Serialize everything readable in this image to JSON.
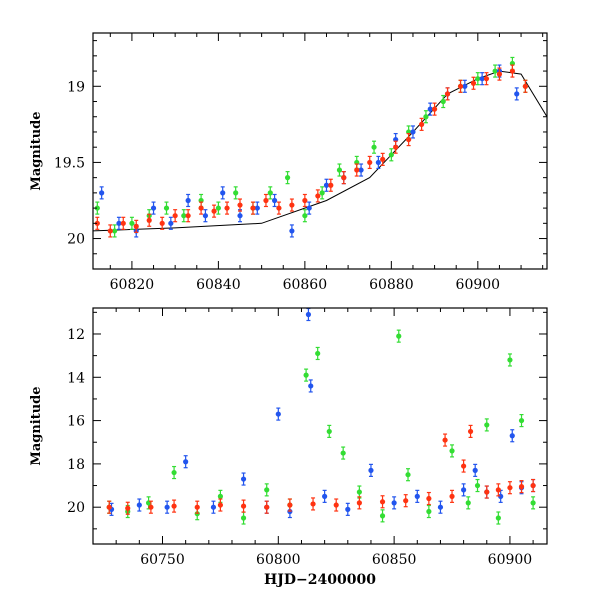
{
  "colors": {
    "green": "#33dd33",
    "blue": "#2255ee",
    "red": "#ff3311",
    "axis": "#000000"
  },
  "chart_data": [
    {
      "type": "scatter",
      "title": "",
      "xlabel": "",
      "ylabel": "Magnitude",
      "xlim": [
        60811,
        60916
      ],
      "ylim": [
        20.2,
        18.65
      ],
      "y_inverted": true,
      "x_ticks": [
        60820,
        60840,
        60860,
        60880,
        60900
      ],
      "x_tick_labels": [
        "60820",
        "60840",
        "60860",
        "60880",
        "60900"
      ],
      "y_ticks": [
        19,
        19.5,
        20
      ],
      "y_tick_labels": [
        "19",
        "19.5",
        "20"
      ],
      "error_bars": true,
      "model_curve": {
        "color": "black",
        "x": [
          60811,
          60830,
          60850,
          60865,
          60875,
          60885,
          60893,
          60900,
          60905,
          60910,
          60916
        ],
        "y": [
          19.95,
          19.93,
          19.9,
          19.75,
          19.6,
          19.3,
          19.05,
          18.95,
          18.9,
          18.92,
          19.2
        ]
      },
      "series": [
        {
          "color": "#33dd33",
          "x": [
            60812,
            60816,
            60820,
            60824,
            60828,
            60832,
            60836,
            60840,
            60844,
            60848,
            60852,
            60856,
            60860,
            60864,
            60868,
            60872,
            60876,
            60880,
            60884,
            60888,
            60892,
            60896,
            60900,
            60904,
            60908,
            60911
          ],
          "y": [
            19.8,
            19.95,
            19.9,
            19.85,
            19.8,
            19.85,
            19.75,
            19.8,
            19.7,
            19.8,
            19.7,
            19.6,
            19.85,
            19.7,
            19.55,
            19.5,
            19.4,
            19.45,
            19.3,
            19.2,
            19.1,
            19.0,
            18.95,
            18.9,
            18.85,
            19.0
          ]
        },
        {
          "color": "#2255ee",
          "x": [
            60813,
            60817,
            60821,
            60825,
            60829,
            60833,
            60837,
            60841,
            60845,
            60849,
            60853,
            60857,
            60861,
            60865,
            60869,
            60873,
            60877,
            60881,
            60885,
            60889,
            60893,
            60897,
            60901,
            60905,
            60909
          ],
          "y": [
            19.7,
            19.9,
            19.95,
            19.8,
            19.9,
            19.75,
            19.85,
            19.7,
            19.85,
            19.8,
            19.75,
            19.95,
            19.8,
            19.65,
            19.6,
            19.55,
            19.5,
            19.35,
            19.3,
            19.15,
            19.05,
            19.0,
            18.95,
            18.9,
            19.05
          ]
        },
        {
          "color": "#ff3311",
          "x": [
            60812,
            60815,
            60818,
            60821,
            60824,
            60827,
            60830,
            60833,
            60836,
            60839,
            60842,
            60845,
            60848,
            60851,
            60854,
            60857,
            60860,
            60863,
            60866,
            60869,
            60872,
            60875,
            60878,
            60881,
            60884,
            60887,
            60890,
            60893,
            60896,
            60899,
            60902,
            60905,
            60908,
            60911
          ],
          "y": [
            19.9,
            19.95,
            19.9,
            19.92,
            19.88,
            19.9,
            19.85,
            19.85,
            19.8,
            19.82,
            19.8,
            19.78,
            19.8,
            19.75,
            19.8,
            19.78,
            19.75,
            19.72,
            19.65,
            19.6,
            19.55,
            19.5,
            19.48,
            19.4,
            19.35,
            19.25,
            19.15,
            19.05,
            19.0,
            18.98,
            18.95,
            18.92,
            18.9,
            19.0
          ]
        }
      ]
    },
    {
      "type": "scatter",
      "title": "",
      "xlabel": "HJD−2400000",
      "ylabel": "Magnitude",
      "xlim": [
        60720,
        60916
      ],
      "ylim": [
        21.7,
        10.8
      ],
      "y_inverted": true,
      "x_ticks": [
        60750,
        60800,
        60850,
        60900
      ],
      "x_tick_labels": [
        "60750",
        "60800",
        "60850",
        "60900"
      ],
      "y_ticks": [
        12,
        14,
        16,
        18,
        20
      ],
      "y_tick_labels": [
        "12",
        "14",
        "16",
        "18",
        "20"
      ],
      "error_bars": true,
      "series": [
        {
          "color": "#33dd33",
          "x": [
            60727,
            60735,
            60744,
            60755,
            60765,
            60775,
            60785,
            60795,
            60805,
            60812,
            60817,
            60822,
            60828,
            60835,
            60845,
            60852,
            60856,
            60865,
            60875,
            60882,
            60886,
            60890,
            60895,
            60900,
            60905,
            60910
          ],
          "y": [
            20.0,
            20.2,
            19.8,
            18.4,
            20.3,
            19.5,
            20.5,
            19.2,
            19.9,
            13.9,
            12.9,
            16.5,
            17.5,
            19.3,
            20.4,
            12.1,
            18.5,
            20.2,
            17.4,
            19.8,
            19.0,
            16.2,
            20.5,
            13.2,
            16.0,
            19.8
          ]
        },
        {
          "color": "#2255ee",
          "x": [
            60728,
            60740,
            60752,
            60760,
            60772,
            60785,
            60795,
            60800,
            60805,
            60813,
            60814,
            60820,
            60830,
            60840,
            60850,
            60860,
            60870,
            60880,
            60885,
            60890,
            60896,
            60901,
            60905,
            60910
          ],
          "y": [
            20.1,
            19.9,
            20.0,
            17.9,
            20.0,
            18.7,
            20.0,
            15.7,
            20.2,
            11.1,
            14.4,
            19.5,
            20.1,
            18.3,
            19.8,
            19.5,
            20.0,
            19.2,
            18.3,
            19.3,
            19.5,
            16.7,
            19.1,
            19.0
          ]
        },
        {
          "color": "#ff3311",
          "x": [
            60727,
            60735,
            60745,
            60755,
            60765,
            60775,
            60785,
            60795,
            60805,
            60815,
            60825,
            60835,
            60845,
            60855,
            60865,
            60872,
            60875,
            60880,
            60883,
            60890,
            60895,
            60900,
            60905,
            60910
          ],
          "y": [
            20.0,
            20.05,
            20.0,
            19.95,
            20.0,
            19.9,
            19.95,
            20.0,
            19.9,
            19.85,
            19.9,
            19.8,
            19.75,
            19.7,
            19.6,
            16.9,
            19.5,
            18.1,
            16.5,
            19.3,
            19.2,
            19.1,
            19.05,
            19.0
          ]
        }
      ]
    }
  ]
}
